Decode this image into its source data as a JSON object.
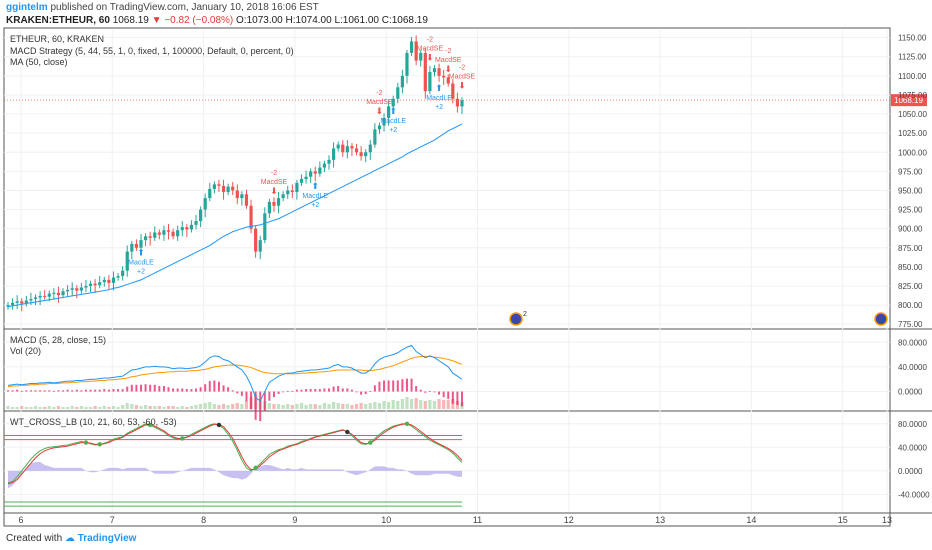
{
  "header": {
    "user": "ggintelm",
    "published": "published on TradingView.com, January 10, 2018 16:06 EST",
    "symbol": "KRAKEN:ETHEUR, 60",
    "last": "1068.19",
    "change": "−0.82 (−0.08%)",
    "open": "O:1073.00",
    "high": "H:1074.00",
    "low": "L:1061.00",
    "close": "C:1068.19"
  },
  "legend": {
    "title": "ETHEUR, 60, KRAKEN",
    "strategy": "MACD Strategy (5, 44, 55, 1, 0, fixed, 1, 100000, Default, 0, percent, 0)",
    "ma": "MA (50, close)",
    "macd": "MACD (5, 28, close, 15)",
    "vol": "Vol (20)",
    "wt": "WT_CROSS_LB (10, 21, 60, 53, -60, -53)"
  },
  "footer": {
    "created": "Created with",
    "brand": "TradingView"
  },
  "colors": {
    "up": "#26a69a",
    "down": "#ef5350",
    "ma": "#2196f3",
    "signal": "#ff9800",
    "hist": "#e91e63",
    "wt1": "#4caf50",
    "wt2": "#e53935",
    "wtarea": "#9c8ce8"
  },
  "chart_data": [
    {
      "type": "candlestick",
      "title": "ETHEUR, 60, KRAKEN",
      "x_ticks": [
        "6",
        "7",
        "8",
        "9",
        "10",
        "11",
        "12",
        "13",
        "14",
        "15",
        "13"
      ],
      "y_ticks": [
        "1150.00",
        "1125.00",
        "1100.00",
        "1075.00",
        "1050.00",
        "1025.00",
        "1000.00",
        "975.00",
        "950.00",
        "925.00",
        "900.00",
        "875.00",
        "850.00",
        "825.00",
        "800.00",
        "775.00"
      ],
      "ylim": [
        770,
        1160
      ],
      "last_price": "1068.19",
      "closes": [
        800,
        803,
        805,
        802,
        806,
        808,
        810,
        812,
        811,
        815,
        816,
        813,
        818,
        820,
        822,
        819,
        823,
        825,
        828,
        826,
        830,
        833,
        829,
        836,
        838,
        845,
        870,
        880,
        875,
        885,
        890,
        888,
        895,
        892,
        898,
        896,
        890,
        898,
        902,
        899,
        905,
        910,
        925,
        940,
        952,
        958,
        956,
        948,
        955,
        950,
        940,
        945,
        930,
        900,
        870,
        885,
        920,
        935,
        930,
        940,
        945,
        950,
        948,
        960,
        965,
        968,
        975,
        972,
        980,
        985,
        990,
        1005,
        1010,
        1000,
        1008,
        1005,
        1000,
        995,
        1000,
        1010,
        1030,
        1035,
        1045,
        1060,
        1070,
        1085,
        1100,
        1130,
        1145,
        1120,
        1130,
        1080,
        1105,
        1110,
        1100,
        1098,
        1090,
        1070,
        1060,
        1068
      ],
      "ma": [
        798,
        799,
        800,
        801,
        802,
        803,
        804,
        805,
        806,
        807,
        808,
        809,
        810,
        811,
        812,
        813,
        814,
        815,
        816,
        817,
        818,
        819,
        820,
        822,
        823,
        825,
        827,
        829,
        831,
        833,
        836,
        839,
        842,
        845,
        848,
        851,
        854,
        857,
        860,
        863,
        866,
        869,
        872,
        875,
        878,
        882,
        886,
        890,
        893,
        896,
        898,
        900,
        902,
        903,
        904,
        905,
        907,
        909,
        911,
        913,
        916,
        919,
        922,
        925,
        928,
        931,
        934,
        937,
        940,
        943,
        946,
        949,
        952,
        955,
        958,
        961,
        964,
        967,
        970,
        973,
        976,
        979,
        982,
        985,
        988,
        991,
        994,
        998,
        1001,
        1004,
        1007,
        1010,
        1013,
        1016,
        1020,
        1024,
        1028,
        1031,
        1034,
        1037
      ],
      "annotations": [
        {
          "text": "MacdLE",
          "sub": "+2"
        },
        {
          "text": "MacdSE",
          "sub": "-2"
        },
        {
          "text": "MacdLE",
          "sub": "+2"
        },
        {
          "text": "MacdSE",
          "sub": "-2"
        },
        {
          "text": "MacdLE",
          "sub": "+2"
        },
        {
          "text": "MacdSE",
          "sub": "-2"
        },
        {
          "text": "MacdSE",
          "sub": "-2"
        },
        {
          "text": "MacdLE",
          "sub": "+2"
        },
        {
          "text": "MacdSE",
          "sub": "-2"
        }
      ],
      "event_badges": [
        "2",
        ""
      ]
    },
    {
      "type": "line",
      "title": "MACD (5, 28, close, 15)",
      "y_ticks": [
        "80.0000",
        "40.0000",
        "0.0000"
      ],
      "ylim": [
        -30,
        100
      ],
      "macd": [
        10,
        11,
        12,
        11,
        12,
        13,
        13,
        14,
        14,
        15,
        14,
        15,
        16,
        17,
        17,
        18,
        18,
        19,
        20,
        20,
        21,
        22,
        22,
        23,
        24,
        25,
        30,
        35,
        36,
        38,
        40,
        40,
        41,
        40,
        40,
        39,
        37,
        38,
        38,
        37,
        38,
        39,
        42,
        48,
        55,
        58,
        57,
        52,
        50,
        45,
        40,
        35,
        25,
        10,
        -10,
        -15,
        0,
        15,
        20,
        25,
        28,
        30,
        30,
        32,
        33,
        34,
        35,
        35,
        36,
        37,
        38,
        42,
        44,
        40,
        40,
        38,
        34,
        30,
        30,
        35,
        45,
        52,
        56,
        58,
        60,
        63,
        68,
        72,
        75,
        65,
        60,
        55,
        58,
        55,
        50,
        45,
        40,
        30,
        25,
        20
      ],
      "signal": [
        8,
        9,
        9,
        10,
        10,
        11,
        11,
        12,
        12,
        13,
        13,
        13,
        14,
        14,
        15,
        15,
        16,
        16,
        17,
        17,
        18,
        18,
        19,
        19,
        20,
        21,
        22,
        24,
        25,
        27,
        28,
        29,
        30,
        31,
        31,
        32,
        32,
        33,
        33,
        33,
        34,
        34,
        35,
        36,
        38,
        40,
        41,
        42,
        43,
        43,
        43,
        42,
        41,
        39,
        36,
        33,
        31,
        30,
        29,
        29,
        29,
        29,
        29,
        29,
        30,
        30,
        31,
        31,
        32,
        32,
        33,
        34,
        35,
        35,
        35,
        35,
        35,
        35,
        34,
        34,
        35,
        36,
        38,
        40,
        42,
        45,
        48,
        51,
        54,
        56,
        57,
        57,
        57,
        56,
        55,
        54,
        52,
        50,
        47,
        44
      ],
      "hist": [
        2,
        2,
        3,
        1,
        2,
        2,
        2,
        2,
        2,
        2,
        1,
        2,
        2,
        3,
        2,
        3,
        2,
        3,
        3,
        3,
        3,
        4,
        3,
        4,
        4,
        4,
        8,
        11,
        11,
        11,
        12,
        11,
        11,
        9,
        9,
        7,
        5,
        5,
        5,
        4,
        4,
        5,
        7,
        12,
        17,
        18,
        16,
        10,
        7,
        2,
        -3,
        -7,
        -16,
        -29,
        -46,
        -48,
        -31,
        -15,
        -9,
        -4,
        -1,
        1,
        1,
        3,
        3,
        4,
        4,
        4,
        4,
        5,
        5,
        8,
        9,
        5,
        5,
        3,
        -1,
        -5,
        -4,
        1,
        10,
        16,
        18,
        18,
        18,
        18,
        20,
        21,
        21,
        9,
        3,
        -2,
        1,
        -1,
        -5,
        -9,
        -12,
        -20,
        -22,
        -24
      ],
      "volume": [
        3,
        2,
        2,
        3,
        2,
        2,
        3,
        2,
        2,
        3,
        2,
        3,
        2,
        2,
        3,
        2,
        3,
        2,
        2,
        3,
        2,
        3,
        2,
        3,
        2,
        4,
        6,
        5,
        4,
        3,
        4,
        3,
        3,
        3,
        2,
        3,
        3,
        2,
        3,
        2,
        3,
        4,
        5,
        6,
        7,
        5,
        4,
        5,
        4,
        5,
        6,
        5,
        8,
        12,
        14,
        10,
        8,
        6,
        5,
        5,
        4,
        5,
        4,
        5,
        6,
        4,
        5,
        5,
        4,
        6,
        5,
        7,
        6,
        5,
        5,
        4,
        5,
        6,
        5,
        6,
        7,
        6,
        8,
        7,
        9,
        8,
        10,
        12,
        10,
        11,
        9,
        8,
        9,
        8,
        10,
        9,
        9,
        10,
        8,
        7
      ]
    },
    {
      "type": "line",
      "title": "WT_CROSS_LB (10, 21, 60, 53, -60, -53)",
      "y_ticks": [
        "80.0000",
        "40.0000",
        "0.0000",
        "-40.0000"
      ],
      "ylim": [
        -70,
        100
      ],
      "levels": [
        60,
        53,
        -60,
        -53
      ],
      "wt1": [
        -20,
        -18,
        -10,
        0,
        10,
        20,
        28,
        34,
        38,
        40,
        41,
        42,
        43,
        44,
        46,
        48,
        50,
        48,
        46,
        44,
        45,
        47,
        50,
        54,
        56,
        58,
        64,
        68,
        72,
        76,
        80,
        78,
        74,
        70,
        66,
        60,
        56,
        54,
        55,
        58,
        62,
        66,
        70,
        74,
        78,
        80,
        78,
        72,
        62,
        50,
        35,
        18,
        5,
        0,
        5,
        12,
        20,
        28,
        32,
        36,
        38,
        42,
        44,
        46,
        50,
        52,
        55,
        58,
        60,
        62,
        64,
        66,
        68,
        70,
        66,
        60,
        52,
        46,
        45,
        48,
        55,
        62,
        68,
        72,
        76,
        78,
        80,
        80,
        76,
        70,
        64,
        58,
        52,
        48,
        44,
        40,
        36,
        30,
        22,
        14
      ],
      "wt2": [
        -22,
        -20,
        -15,
        -6,
        4,
        13,
        22,
        29,
        34,
        37,
        39,
        40,
        41,
        42,
        44,
        46,
        48,
        48,
        47,
        45,
        45,
        46,
        48,
        52,
        54,
        57,
        62,
        66,
        70,
        74,
        78,
        78,
        76,
        72,
        68,
        62,
        58,
        55,
        55,
        57,
        60,
        64,
        68,
        72,
        76,
        79,
        79,
        75,
        66,
        55,
        40,
        24,
        10,
        2,
        3,
        9,
        16,
        24,
        29,
        34,
        37,
        40,
        43,
        45,
        48,
        51,
        54,
        57,
        59,
        61,
        63,
        65,
        67,
        69,
        67,
        62,
        55,
        48,
        46,
        47,
        52,
        59,
        65,
        70,
        74,
        77,
        79,
        80,
        78,
        73,
        67,
        61,
        55,
        50,
        46,
        42,
        38,
        33,
        26,
        18
      ],
      "area": [
        -12,
        -10,
        -6,
        -2,
        2,
        5,
        6,
        6,
        4,
        3,
        2,
        2,
        2,
        2,
        2,
        2,
        2,
        0,
        -1,
        -1,
        0,
        1,
        2,
        2,
        2,
        1,
        2,
        2,
        2,
        2,
        2,
        0,
        -2,
        -2,
        -2,
        -2,
        -2,
        -1,
        0,
        1,
        2,
        2,
        2,
        2,
        2,
        1,
        -1,
        -3,
        -4,
        -5,
        -5,
        -6,
        -5,
        -2,
        2,
        3,
        4,
        4,
        3,
        2,
        1,
        2,
        1,
        1,
        2,
        1,
        1,
        1,
        1,
        1,
        1,
        1,
        1,
        1,
        -1,
        -2,
        -3,
        -2,
        -1,
        1,
        3,
        3,
        3,
        2,
        2,
        1,
        1,
        0,
        -2,
        -3,
        -3,
        -3,
        -3,
        -2,
        -2,
        -2,
        -2,
        -3,
        -4,
        -4
      ]
    }
  ]
}
